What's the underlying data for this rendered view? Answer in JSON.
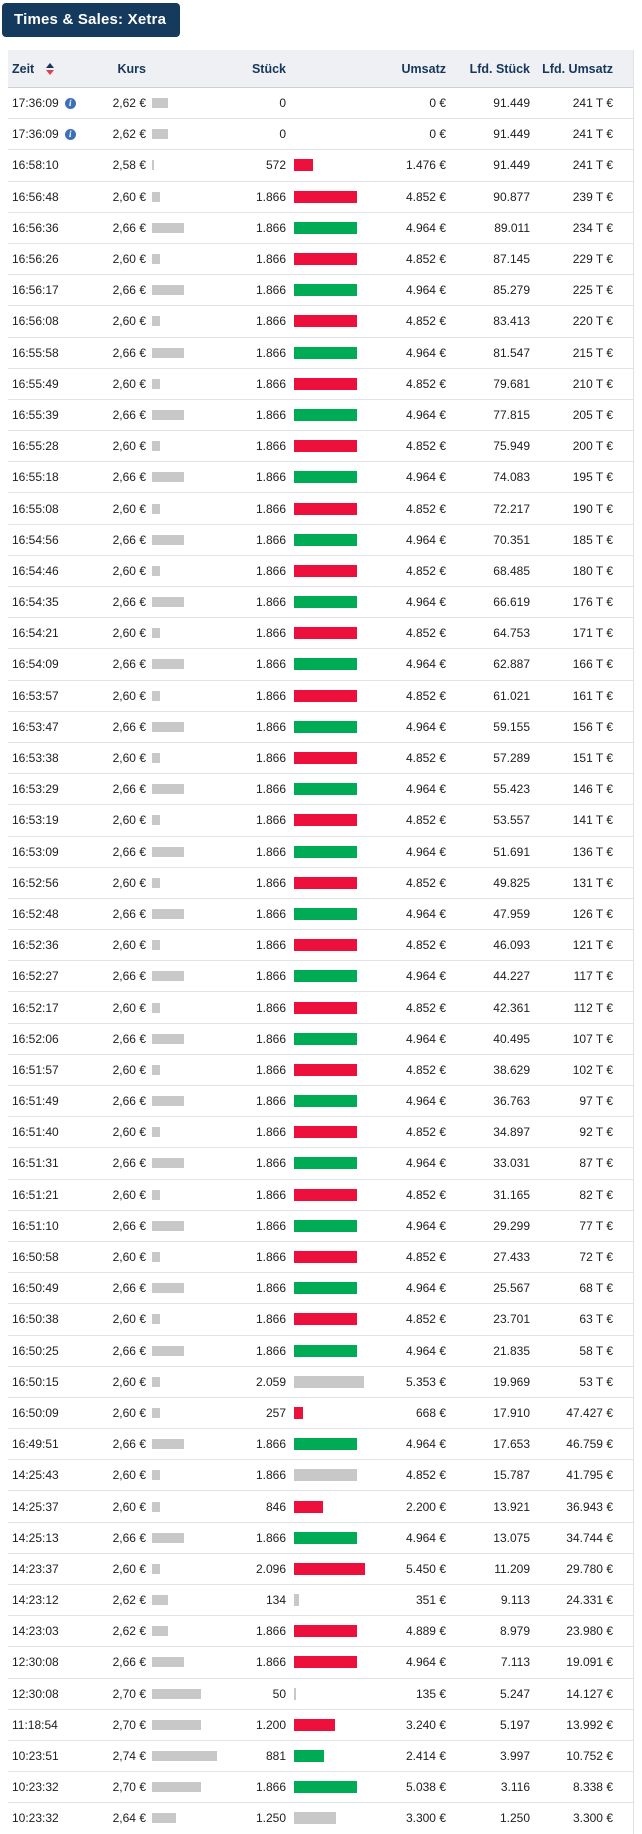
{
  "title": "Times & Sales: Xetra",
  "columns": {
    "zeit": "Zeit",
    "kurs": "Kurs",
    "stueck": "Stück",
    "umsatz": "Umsatz",
    "lfd_stueck": "Lfd. Stück",
    "lfd_umsatz": "Lfd. Umsatz"
  },
  "icons": {
    "sort": "sort-asc-desc",
    "info": "i"
  },
  "colors": {
    "title_bg": "#143a5e",
    "header_bg": "#eef0f3",
    "header_text": "#16365c",
    "up_bar": "#00ab55",
    "down_bar": "#ee103c",
    "neutral_bar": "#c8c8c8",
    "price_bar": "#c8c8c8",
    "sort_up": "#16365c",
    "sort_down": "#e03e52",
    "info_icon_bg": "#3f6fb5"
  },
  "rows": [
    {
      "t": "17:36:09",
      "i": true,
      "k": "2,62 €",
      "d": "none",
      "s": "0",
      "u": "0 €",
      "ls": "91.449",
      "lu": "241 T €"
    },
    {
      "t": "17:36:09",
      "i": true,
      "k": "2,62 €",
      "d": "none",
      "s": "0",
      "u": "0 €",
      "ls": "91.449",
      "lu": "241 T €"
    },
    {
      "t": "16:58:10",
      "i": false,
      "k": "2,58 €",
      "d": "down",
      "s": "572",
      "u": "1.476 €",
      "ls": "91.449",
      "lu": "241 T €"
    },
    {
      "t": "16:56:48",
      "i": false,
      "k": "2,60 €",
      "d": "down",
      "s": "1.866",
      "u": "4.852 €",
      "ls": "90.877",
      "lu": "239 T €"
    },
    {
      "t": "16:56:36",
      "i": false,
      "k": "2,66 €",
      "d": "up",
      "s": "1.866",
      "u": "4.964 €",
      "ls": "89.011",
      "lu": "234 T €"
    },
    {
      "t": "16:56:26",
      "i": false,
      "k": "2,60 €",
      "d": "down",
      "s": "1.866",
      "u": "4.852 €",
      "ls": "87.145",
      "lu": "229 T €"
    },
    {
      "t": "16:56:17",
      "i": false,
      "k": "2,66 €",
      "d": "up",
      "s": "1.866",
      "u": "4.964 €",
      "ls": "85.279",
      "lu": "225 T €"
    },
    {
      "t": "16:56:08",
      "i": false,
      "k": "2,60 €",
      "d": "down",
      "s": "1.866",
      "u": "4.852 €",
      "ls": "83.413",
      "lu": "220 T €"
    },
    {
      "t": "16:55:58",
      "i": false,
      "k": "2,66 €",
      "d": "up",
      "s": "1.866",
      "u": "4.964 €",
      "ls": "81.547",
      "lu": "215 T €"
    },
    {
      "t": "16:55:49",
      "i": false,
      "k": "2,60 €",
      "d": "down",
      "s": "1.866",
      "u": "4.852 €",
      "ls": "79.681",
      "lu": "210 T €"
    },
    {
      "t": "16:55:39",
      "i": false,
      "k": "2,66 €",
      "d": "up",
      "s": "1.866",
      "u": "4.964 €",
      "ls": "77.815",
      "lu": "205 T €"
    },
    {
      "t": "16:55:28",
      "i": false,
      "k": "2,60 €",
      "d": "down",
      "s": "1.866",
      "u": "4.852 €",
      "ls": "75.949",
      "lu": "200 T €"
    },
    {
      "t": "16:55:18",
      "i": false,
      "k": "2,66 €",
      "d": "up",
      "s": "1.866",
      "u": "4.964 €",
      "ls": "74.083",
      "lu": "195 T €"
    },
    {
      "t": "16:55:08",
      "i": false,
      "k": "2,60 €",
      "d": "down",
      "s": "1.866",
      "u": "4.852 €",
      "ls": "72.217",
      "lu": "190 T €"
    },
    {
      "t": "16:54:56",
      "i": false,
      "k": "2,66 €",
      "d": "up",
      "s": "1.866",
      "u": "4.964 €",
      "ls": "70.351",
      "lu": "185 T €"
    },
    {
      "t": "16:54:46",
      "i": false,
      "k": "2,60 €",
      "d": "down",
      "s": "1.866",
      "u": "4.852 €",
      "ls": "68.485",
      "lu": "180 T €"
    },
    {
      "t": "16:54:35",
      "i": false,
      "k": "2,66 €",
      "d": "up",
      "s": "1.866",
      "u": "4.964 €",
      "ls": "66.619",
      "lu": "176 T €"
    },
    {
      "t": "16:54:21",
      "i": false,
      "k": "2,60 €",
      "d": "down",
      "s": "1.866",
      "u": "4.852 €",
      "ls": "64.753",
      "lu": "171 T €"
    },
    {
      "t": "16:54:09",
      "i": false,
      "k": "2,66 €",
      "d": "up",
      "s": "1.866",
      "u": "4.964 €",
      "ls": "62.887",
      "lu": "166 T €"
    },
    {
      "t": "16:53:57",
      "i": false,
      "k": "2,60 €",
      "d": "down",
      "s": "1.866",
      "u": "4.852 €",
      "ls": "61.021",
      "lu": "161 T €"
    },
    {
      "t": "16:53:47",
      "i": false,
      "k": "2,66 €",
      "d": "up",
      "s": "1.866",
      "u": "4.964 €",
      "ls": "59.155",
      "lu": "156 T €"
    },
    {
      "t": "16:53:38",
      "i": false,
      "k": "2,60 €",
      "d": "down",
      "s": "1.866",
      "u": "4.852 €",
      "ls": "57.289",
      "lu": "151 T €"
    },
    {
      "t": "16:53:29",
      "i": false,
      "k": "2,66 €",
      "d": "up",
      "s": "1.866",
      "u": "4.964 €",
      "ls": "55.423",
      "lu": "146 T €"
    },
    {
      "t": "16:53:19",
      "i": false,
      "k": "2,60 €",
      "d": "down",
      "s": "1.866",
      "u": "4.852 €",
      "ls": "53.557",
      "lu": "141 T €"
    },
    {
      "t": "16:53:09",
      "i": false,
      "k": "2,66 €",
      "d": "up",
      "s": "1.866",
      "u": "4.964 €",
      "ls": "51.691",
      "lu": "136 T €"
    },
    {
      "t": "16:52:56",
      "i": false,
      "k": "2,60 €",
      "d": "down",
      "s": "1.866",
      "u": "4.852 €",
      "ls": "49.825",
      "lu": "131 T €"
    },
    {
      "t": "16:52:48",
      "i": false,
      "k": "2,66 €",
      "d": "up",
      "s": "1.866",
      "u": "4.964 €",
      "ls": "47.959",
      "lu": "126 T €"
    },
    {
      "t": "16:52:36",
      "i": false,
      "k": "2,60 €",
      "d": "down",
      "s": "1.866",
      "u": "4.852 €",
      "ls": "46.093",
      "lu": "121 T €"
    },
    {
      "t": "16:52:27",
      "i": false,
      "k": "2,66 €",
      "d": "up",
      "s": "1.866",
      "u": "4.964 €",
      "ls": "44.227",
      "lu": "117 T €"
    },
    {
      "t": "16:52:17",
      "i": false,
      "k": "2,60 €",
      "d": "down",
      "s": "1.866",
      "u": "4.852 €",
      "ls": "42.361",
      "lu": "112 T €"
    },
    {
      "t": "16:52:06",
      "i": false,
      "k": "2,66 €",
      "d": "up",
      "s": "1.866",
      "u": "4.964 €",
      "ls": "40.495",
      "lu": "107 T €"
    },
    {
      "t": "16:51:57",
      "i": false,
      "k": "2,60 €",
      "d": "down",
      "s": "1.866",
      "u": "4.852 €",
      "ls": "38.629",
      "lu": "102 T €"
    },
    {
      "t": "16:51:49",
      "i": false,
      "k": "2,66 €",
      "d": "up",
      "s": "1.866",
      "u": "4.964 €",
      "ls": "36.763",
      "lu": "97 T €"
    },
    {
      "t": "16:51:40",
      "i": false,
      "k": "2,60 €",
      "d": "down",
      "s": "1.866",
      "u": "4.852 €",
      "ls": "34.897",
      "lu": "92 T €"
    },
    {
      "t": "16:51:31",
      "i": false,
      "k": "2,66 €",
      "d": "up",
      "s": "1.866",
      "u": "4.964 €",
      "ls": "33.031",
      "lu": "87 T €"
    },
    {
      "t": "16:51:21",
      "i": false,
      "k": "2,60 €",
      "d": "down",
      "s": "1.866",
      "u": "4.852 €",
      "ls": "31.165",
      "lu": "82 T €"
    },
    {
      "t": "16:51:10",
      "i": false,
      "k": "2,66 €",
      "d": "up",
      "s": "1.866",
      "u": "4.964 €",
      "ls": "29.299",
      "lu": "77 T €"
    },
    {
      "t": "16:50:58",
      "i": false,
      "k": "2,60 €",
      "d": "down",
      "s": "1.866",
      "u": "4.852 €",
      "ls": "27.433",
      "lu": "72 T €"
    },
    {
      "t": "16:50:49",
      "i": false,
      "k": "2,66 €",
      "d": "up",
      "s": "1.866",
      "u": "4.964 €",
      "ls": "25.567",
      "lu": "68 T €"
    },
    {
      "t": "16:50:38",
      "i": false,
      "k": "2,60 €",
      "d": "down",
      "s": "1.866",
      "u": "4.852 €",
      "ls": "23.701",
      "lu": "63 T €"
    },
    {
      "t": "16:50:25",
      "i": false,
      "k": "2,66 €",
      "d": "up",
      "s": "1.866",
      "u": "4.964 €",
      "ls": "21.835",
      "lu": "58 T €"
    },
    {
      "t": "16:50:15",
      "i": false,
      "k": "2,60 €",
      "d": "neutral",
      "s": "2.059",
      "u": "5.353 €",
      "ls": "19.969",
      "lu": "53 T €"
    },
    {
      "t": "16:50:09",
      "i": false,
      "k": "2,60 €",
      "d": "down",
      "s": "257",
      "u": "668 €",
      "ls": "17.910",
      "lu": "47.427 €"
    },
    {
      "t": "16:49:51",
      "i": false,
      "k": "2,66 €",
      "d": "up",
      "s": "1.866",
      "u": "4.964 €",
      "ls": "17.653",
      "lu": "46.759 €"
    },
    {
      "t": "14:25:43",
      "i": false,
      "k": "2,60 €",
      "d": "neutral",
      "s": "1.866",
      "u": "4.852 €",
      "ls": "15.787",
      "lu": "41.795 €"
    },
    {
      "t": "14:25:37",
      "i": false,
      "k": "2,60 €",
      "d": "down",
      "s": "846",
      "u": "2.200 €",
      "ls": "13.921",
      "lu": "36.943 €"
    },
    {
      "t": "14:25:13",
      "i": false,
      "k": "2,66 €",
      "d": "up",
      "s": "1.866",
      "u": "4.964 €",
      "ls": "13.075",
      "lu": "34.744 €"
    },
    {
      "t": "14:23:37",
      "i": false,
      "k": "2,60 €",
      "d": "down",
      "s": "2.096",
      "u": "5.450 €",
      "ls": "11.209",
      "lu": "29.780 €"
    },
    {
      "t": "14:23:12",
      "i": false,
      "k": "2,62 €",
      "d": "neutral",
      "s": "134",
      "u": "351 €",
      "ls": "9.113",
      "lu": "24.331 €"
    },
    {
      "t": "14:23:03",
      "i": false,
      "k": "2,62 €",
      "d": "down",
      "s": "1.866",
      "u": "4.889 €",
      "ls": "8.979",
      "lu": "23.980 €"
    },
    {
      "t": "12:30:08",
      "i": false,
      "k": "2,66 €",
      "d": "down",
      "s": "1.866",
      "u": "4.964 €",
      "ls": "7.113",
      "lu": "19.091 €"
    },
    {
      "t": "12:30:08",
      "i": false,
      "k": "2,70 €",
      "d": "neutral",
      "s": "50",
      "u": "135 €",
      "ls": "5.247",
      "lu": "14.127 €"
    },
    {
      "t": "11:18:54",
      "i": false,
      "k": "2,70 €",
      "d": "down",
      "s": "1.200",
      "u": "3.240 €",
      "ls": "5.197",
      "lu": "13.992 €"
    },
    {
      "t": "10:23:51",
      "i": false,
      "k": "2,74 €",
      "d": "up",
      "s": "881",
      "u": "2.414 €",
      "ls": "3.997",
      "lu": "10.752 €"
    },
    {
      "t": "10:23:32",
      "i": false,
      "k": "2,70 €",
      "d": "up",
      "s": "1.866",
      "u": "5.038 €",
      "ls": "3.116",
      "lu": "8.338 €"
    },
    {
      "t": "10:23:32",
      "i": false,
      "k": "2,64 €",
      "d": "neutral",
      "s": "1.250",
      "u": "3.300 €",
      "ls": "1.250",
      "lu": "3.300 €"
    }
  ]
}
